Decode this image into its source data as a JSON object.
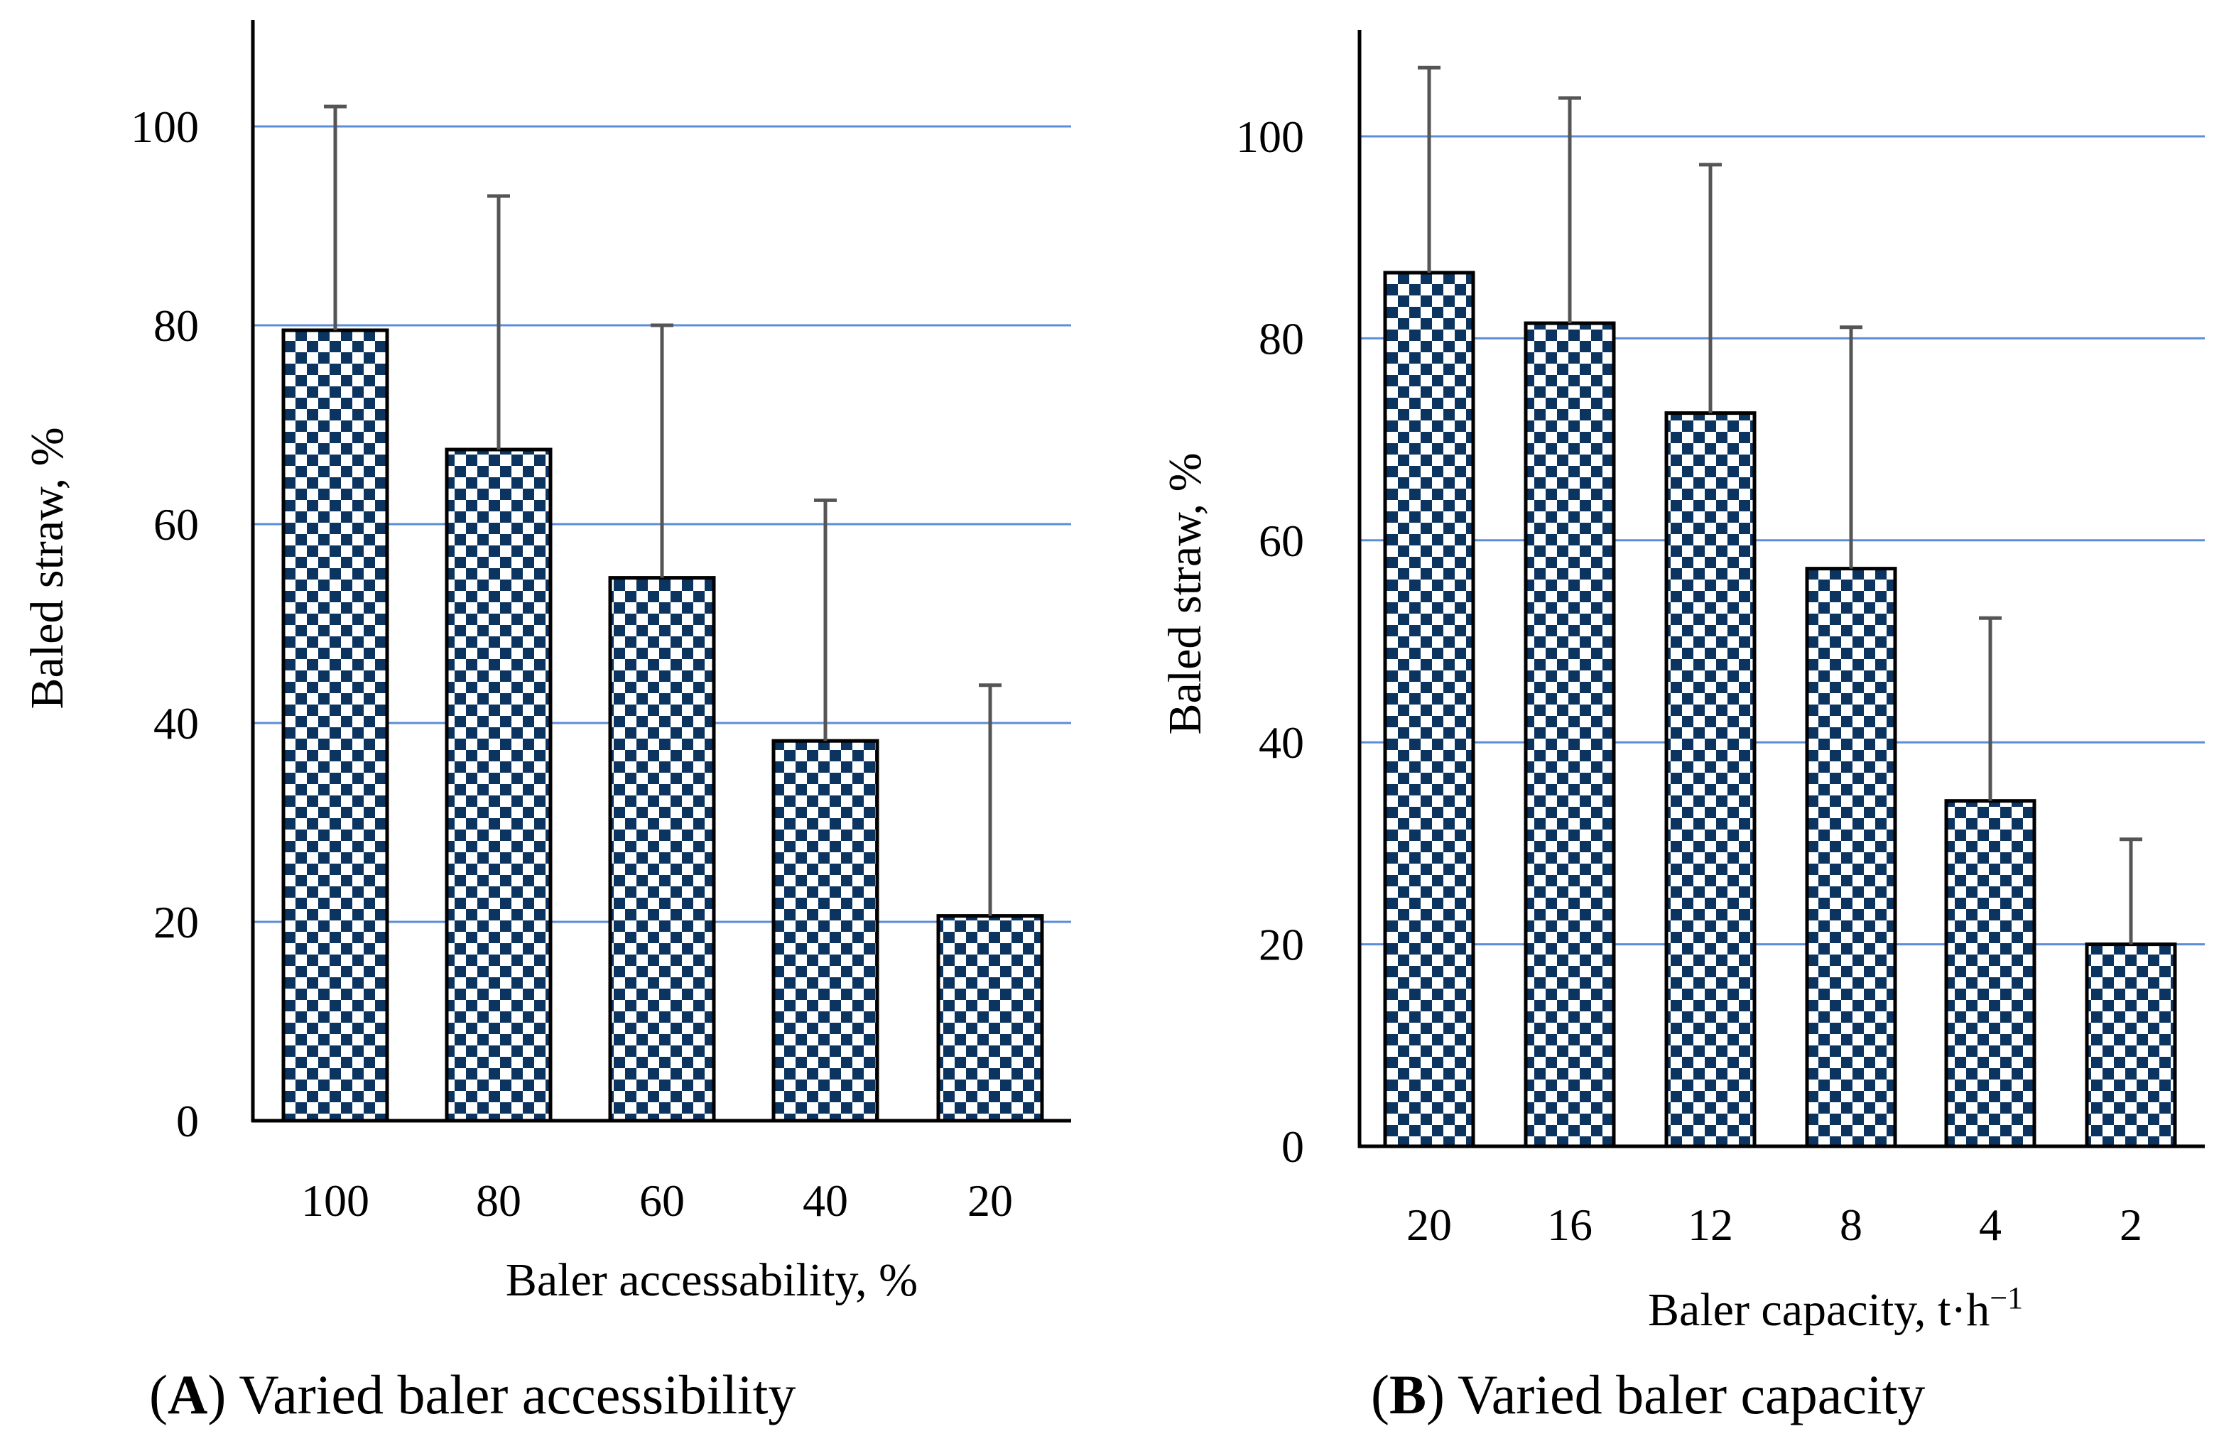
{
  "colors": {
    "bar_fill": "#0c3460",
    "bar_check": "#ffffff",
    "bar_stroke": "#000000",
    "grid": "#5b8dd9",
    "error_bar": "#555555",
    "axis": "#000000"
  },
  "chart_data": [
    {
      "type": "bar",
      "panel_label": "A",
      "caption_open": "(",
      "caption_close": ")",
      "caption_text": " Varied baler accessibility",
      "xlabel": "Baler accessability, %",
      "ylabel": "Baled straw, %",
      "ylim": [
        0,
        110
      ],
      "yticks": [
        0,
        20,
        40,
        60,
        80,
        100
      ],
      "grid": true,
      "categories": [
        "100",
        "80",
        "60",
        "40",
        "20"
      ],
      "values": [
        79.5,
        67.5,
        54.6,
        38.2,
        20.6
      ],
      "error_upper": [
        102,
        93,
        80,
        62.4,
        43.8
      ]
    },
    {
      "type": "bar",
      "panel_label": "B",
      "caption_open": "(",
      "caption_close": ")",
      "caption_text": " Varied baler capacity",
      "xlabel": "Baler capacity, t·h",
      "xlabel_sup": "−1",
      "ylabel": "Baled straw, %",
      "ylim": [
        0,
        110
      ],
      "yticks": [
        0,
        20,
        40,
        60,
        80,
        100
      ],
      "grid": true,
      "categories": [
        "20",
        "16",
        "12",
        "8",
        "4",
        "2"
      ],
      "values": [
        86.5,
        81.5,
        72.6,
        57.2,
        34.2,
        20
      ],
      "error_upper": [
        106.8,
        103.8,
        97.2,
        81.1,
        52.3,
        30.4
      ]
    }
  ]
}
